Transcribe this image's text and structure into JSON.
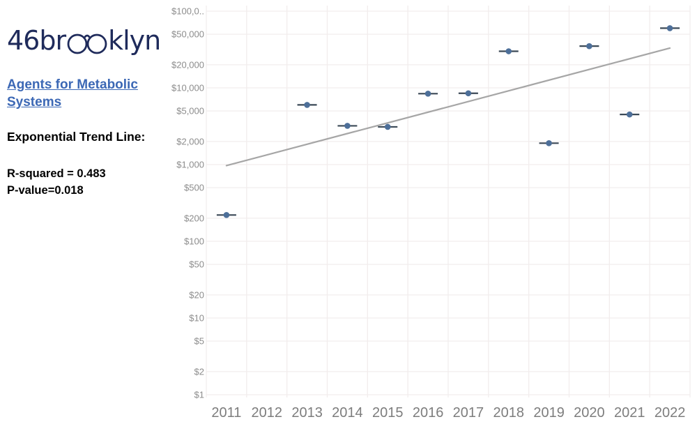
{
  "branding": {
    "logo_pre": "46br",
    "logo_post": "klyn",
    "logo_color": "#1f2b5b"
  },
  "sidebar": {
    "drug_class_link": "Agents for Metabolic Systems",
    "trend_label": "Exponential Trend Line:",
    "r_squared": "R-squared = 0.483",
    "p_value": "P-value=0.018"
  },
  "chart_data": {
    "type": "scatter",
    "title": "",
    "xlabel": "",
    "ylabel": "",
    "y_scale": "log",
    "ylim": [
      1,
      100000
    ],
    "grid": true,
    "x_categories": [
      "2011",
      "2012",
      "2013",
      "2014",
      "2015",
      "2016",
      "2017",
      "2018",
      "2019",
      "2020",
      "2021",
      "2022"
    ],
    "points": [
      {
        "year": 2011,
        "value": 220
      },
      {
        "year": 2013,
        "value": 6000
      },
      {
        "year": 2014,
        "value": 3200
      },
      {
        "year": 2015,
        "value": 3100
      },
      {
        "year": 2016,
        "value": 8400
      },
      {
        "year": 2017,
        "value": 8500
      },
      {
        "year": 2018,
        "value": 30000
      },
      {
        "year": 2019,
        "value": 1900
      },
      {
        "year": 2020,
        "value": 35000
      },
      {
        "year": 2021,
        "value": 4500
      },
      {
        "year": 2022,
        "value": 60000
      }
    ],
    "y_ticks": [
      {
        "value": 1,
        "label": "$1"
      },
      {
        "value": 2,
        "label": "$2"
      },
      {
        "value": 5,
        "label": "$5"
      },
      {
        "value": 10,
        "label": "$10"
      },
      {
        "value": 20,
        "label": "$20"
      },
      {
        "value": 50,
        "label": "$50"
      },
      {
        "value": 100,
        "label": "$100"
      },
      {
        "value": 200,
        "label": "$200"
      },
      {
        "value": 500,
        "label": "$500"
      },
      {
        "value": 1000,
        "label": "$1,000"
      },
      {
        "value": 2000,
        "label": "$2,000"
      },
      {
        "value": 5000,
        "label": "$5,000"
      },
      {
        "value": 10000,
        "label": "$10,000"
      },
      {
        "value": 20000,
        "label": "$20,000"
      },
      {
        "value": 50000,
        "label": "$50,000"
      },
      {
        "value": 100000,
        "label": "$100,0.."
      }
    ],
    "trend_line": {
      "type": "exponential",
      "start": {
        "year": 2011,
        "value": 970
      },
      "end": {
        "year": 2022,
        "value": 33000
      },
      "r_squared": 0.483,
      "p_value": 0.018
    },
    "colors": {
      "point": "#4d6f99",
      "whisker": "#3b4956",
      "trend": "#a6a6a6",
      "grid": "#f2eded",
      "tick_label": "#8c8c8c",
      "year_label": "#7d7d7d"
    }
  }
}
